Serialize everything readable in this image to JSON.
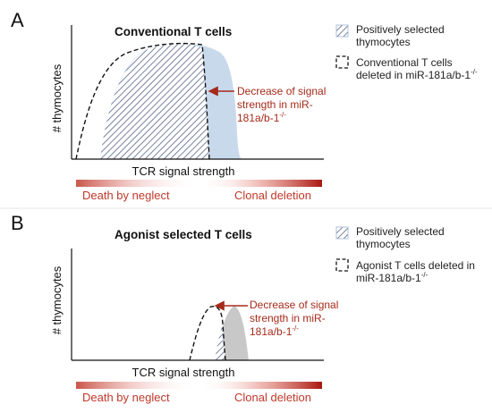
{
  "colors": {
    "accent_red": "#c0392b",
    "annotation_red": "#a52a1a",
    "blue_fill": "#c9d9ec",
    "hatch_blue": "#5b6f99",
    "gray_fill": "#c8c8c8"
  },
  "panel_a": {
    "letter": "A",
    "title": "Conventional T cells",
    "y_label": "# thymocytes",
    "x_label": "TCR signal strength",
    "annotation_line1": "Decrease of signal",
    "annotation_line2": "strength in miR-",
    "annotation_line3": "181a/b-1",
    "annotation_sup": "-/-",
    "fate_left": "Death by neglect",
    "fate_right": "Clonal deletion",
    "legend_hatched_line1": "Positively selected",
    "legend_hatched_line2": "thymocytes",
    "legend_dashed_line1": "Conventional T cells",
    "legend_dashed_line2": "deleted in miR-181a/b-1",
    "legend_dashed_sup": "-/-"
  },
  "panel_b": {
    "letter": "B",
    "title": "Agonist selected T cells",
    "y_label": "# thymocytes",
    "x_label": "TCR signal strength",
    "annotation_line1": "Decrease of signal",
    "annotation_line2": "strength in miR-",
    "annotation_line3": "181a/b-1",
    "annotation_sup": "-/-",
    "fate_left": "Death by neglect",
    "fate_right": "Clonal deletion",
    "legend_hatched_line1": "Positively selected",
    "legend_hatched_line2": "thymocytes",
    "legend_dashed_line1": "Agonist T cells deleted in",
    "legend_dashed_line2": "miR-181a/b-1",
    "legend_dashed_sup": "-/-"
  }
}
